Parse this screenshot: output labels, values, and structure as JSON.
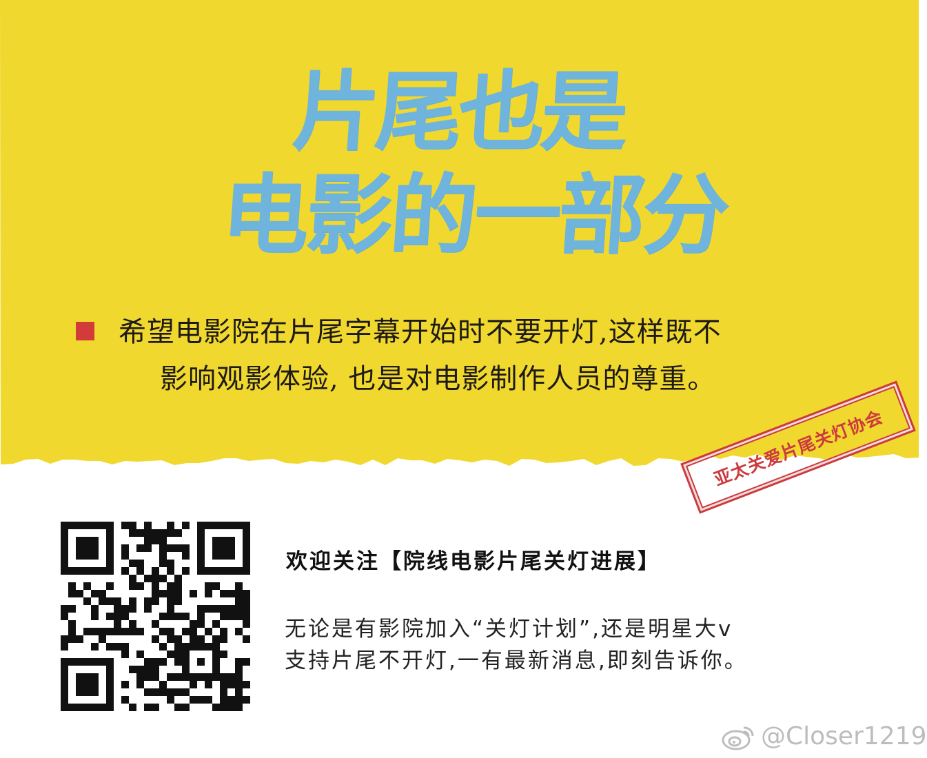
{
  "poster": {
    "headline_line1": "片尾也是",
    "headline_line2": "电影的一部分",
    "message_line1": "希望电影院在片尾字幕开始时不要开灯,这样既不",
    "message_line2": "影响观影体验, 也是对电影制作人员的尊重。",
    "stamp_text": "亚太关爱片尾关灯协会"
  },
  "follow": {
    "heading": "欢迎关注【院线电影片尾关灯进展】",
    "description_line1": "无论是有影院加入“关灯计划”,还是明星大v",
    "description_line2": "支持片尾不开灯,一有最新消息,即刻告诉你。"
  },
  "watermark": {
    "handle": "@Closer1219",
    "icon": "weibo-icon"
  },
  "colors": {
    "background_yellow": "#f0d82e",
    "headline_blue": "#6fb4dc",
    "bullet_red": "#d23b3a",
    "stamp_red": "#cc3a3e",
    "body_text": "#1e1a17",
    "watermark_gray": "#bdbdbd"
  },
  "icons": {
    "bullet": "red-square-bullet-icon",
    "qr": "qr-code-icon"
  }
}
